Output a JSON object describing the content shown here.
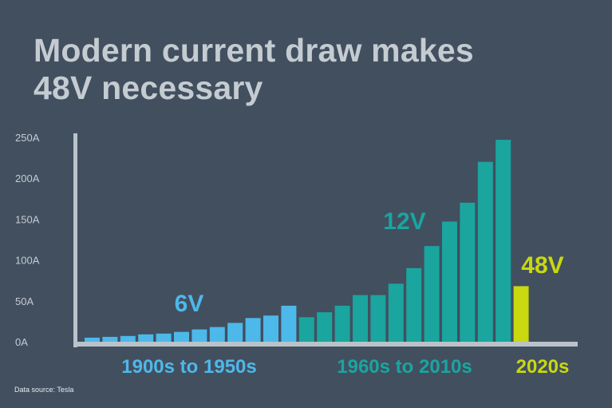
{
  "title_lines": [
    "Modern current draw makes",
    "48V necessary"
  ],
  "source": "Data source: Tesla",
  "colors": {
    "6V": "#4db8ea",
    "12V": "#1aa59f",
    "48V": "#c9d80f",
    "axis": "#b9c3c9"
  },
  "chart_data": {
    "type": "bar",
    "ylim": [
      0,
      250
    ],
    "yticks": [
      0,
      50,
      100,
      150,
      200,
      250
    ],
    "ytick_labels": [
      "0A",
      "50A",
      "100A",
      "150A",
      "200A",
      "250A"
    ],
    "ylabel": "",
    "xlabel": "",
    "grid": false,
    "series": [
      {
        "name": "6V",
        "group_label": "1900s to 1950s",
        "color": "#4db8ea",
        "values": [
          5,
          6,
          7,
          9,
          10,
          12,
          15,
          18,
          23,
          29,
          32,
          44
        ]
      },
      {
        "name": "12V",
        "group_label": "1960s to 2010s",
        "color": "#1aa59f",
        "values": [
          30,
          36,
          44,
          57,
          57,
          71,
          90,
          117,
          147,
          170,
          220,
          247
        ]
      },
      {
        "name": "48V",
        "group_label": "2020s",
        "color": "#c9d80f",
        "values": [
          68
        ]
      }
    ]
  }
}
